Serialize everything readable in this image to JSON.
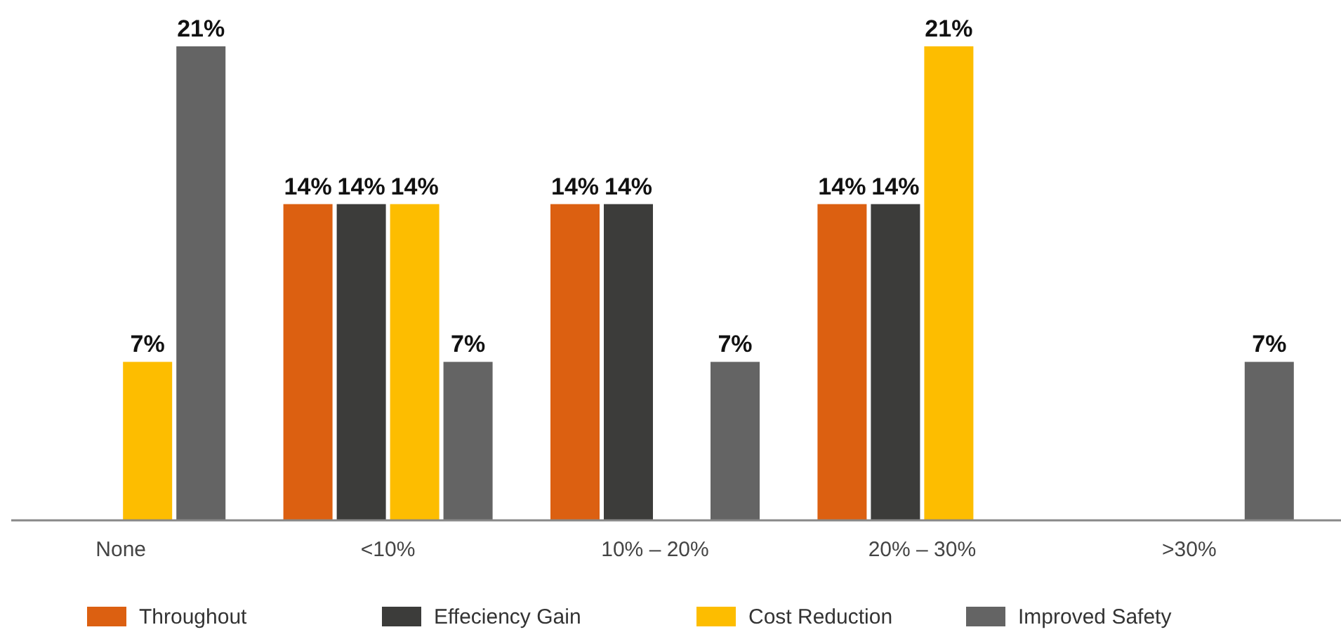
{
  "chart_data": {
    "type": "bar",
    "categories": [
      "None",
      "<10%",
      "10% – 20%",
      "20% – 30%",
      ">30%"
    ],
    "series": [
      {
        "name": "Throughout",
        "color": "#dc6011",
        "values": [
          null,
          14,
          14,
          14,
          null
        ],
        "value_labels": [
          null,
          "14%",
          "14%",
          "14%",
          null
        ]
      },
      {
        "name": "Effeciency Gain",
        "color": "#3c3c3a",
        "values": [
          null,
          14,
          14,
          14,
          null
        ],
        "value_labels": [
          null,
          "14%",
          "14%",
          "14%",
          null
        ]
      },
      {
        "name": "Cost Reduction",
        "color": "#fdbd00",
        "values": [
          7,
          14,
          null,
          21,
          null
        ],
        "value_labels": [
          "7%",
          "14%",
          null,
          "21%",
          null
        ]
      },
      {
        "name": "Improved Safety",
        "color": "#646464",
        "values": [
          21,
          7,
          7,
          null,
          7
        ],
        "value_labels": [
          "21%",
          "7%",
          "7%",
          null,
          "7%"
        ]
      }
    ],
    "ylim": [
      0,
      21
    ],
    "tick_labels": "x",
    "legend": "bottom"
  }
}
